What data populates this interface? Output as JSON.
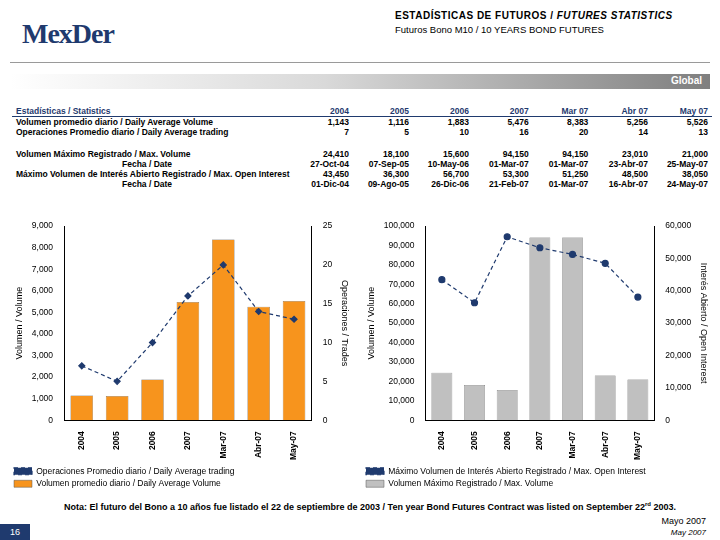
{
  "header": {
    "logo": "MexDer",
    "title": "ESTADÍSTICAS DE FUTUROS / ",
    "title_en": "FUTURES STATISTICS",
    "subtitle": "Futuros Bono M10 / 10 YEARS BOND FUTURES",
    "band": "Global"
  },
  "table": {
    "columns": [
      "Estadísticas / Statistics",
      "2004",
      "2005",
      "2006",
      "2007",
      "Mar 07",
      "Abr 07",
      "May 07"
    ],
    "rows": [
      [
        "Volumen promedio diario / Daily Average Volume",
        "1,143",
        "1,116",
        "1,883",
        "5,476",
        "8,383",
        "5,256",
        "5,526"
      ],
      [
        "Operaciones Promedio diario / Daily Average trading",
        "7",
        "5",
        "10",
        "16",
        "20",
        "14",
        "13"
      ],
      [
        "Volumen Máximo Registrado / Max. Volume",
        "24,410",
        "18,100",
        "15,600",
        "94,150",
        "94,150",
        "23,010",
        "21,000"
      ],
      [
        "Fecha / Date",
        "27-Oct-04",
        "07-Sep-05",
        "10-May-06",
        "01-Mar-07",
        "01-Mar-07",
        "23-Abr-07",
        "25-May-07"
      ],
      [
        "Máximo Volumen de Interés Abierto Registrado / Max. Open Interest",
        "43,450",
        "36,300",
        "56,700",
        "53,300",
        "51,250",
        "48,500",
        "38,050"
      ],
      [
        "Fecha / Date",
        "01-Dic-04",
        "09-Ago-05",
        "26-Dic-06",
        "21-Feb-07",
        "01-Mar-07",
        "16-Abr-07",
        "24-May-07"
      ]
    ]
  },
  "chart_data": [
    {
      "type": "bar",
      "categories": [
        "2004",
        "2005",
        "2006",
        "2007",
        "Mar-07",
        "Abr-07",
        "May-07"
      ],
      "series": [
        {
          "name": "Volumen promedio diario / Daily Average Volume",
          "type": "bar",
          "color": "#F7941D",
          "values": [
            1143,
            1116,
            1883,
            5476,
            8383,
            5256,
            5526
          ]
        },
        {
          "name": "Operaciones Promedio diario / Daily Average trading",
          "type": "line",
          "color": "#1F3A6E",
          "marker": "diamond",
          "line_style": "dashed",
          "axis": "y2",
          "values": [
            7,
            5,
            10,
            16,
            20,
            14,
            13
          ]
        }
      ],
      "y_label": "Volumen / Volume",
      "y2_label": "Operaciones / Trades",
      "ylim": [
        0,
        9000
      ],
      "yticks": [
        0,
        {
          "value": 1000,
          "label": "1,000"
        },
        {
          "value": 2000,
          "label": "2,000"
        },
        {
          "value": 3000,
          "label": "3,000"
        },
        {
          "value": 4000,
          "label": "4,000"
        },
        {
          "value": 5000,
          "label": "5,000"
        },
        {
          "value": 6000,
          "label": "6,000"
        },
        {
          "value": 7000,
          "label": "7,000"
        },
        {
          "value": 8000,
          "label": "8,000"
        },
        {
          "value": 9000,
          "label": "9,000"
        }
      ],
      "y2lim": [
        0,
        25
      ],
      "y2ticks": [
        0,
        5,
        10,
        15,
        20,
        25
      ],
      "grid": false,
      "legend": "bottom"
    },
    {
      "type": "bar",
      "categories": [
        "2004",
        "2005",
        "2006",
        "2007",
        "Mar-07",
        "Abr-07",
        "May-07"
      ],
      "series": [
        {
          "name": "Volumen Máximo Registrado / Max. Volume",
          "type": "bar",
          "color": "#C0C0C0",
          "values": [
            24410,
            18100,
            15600,
            94150,
            94150,
            23010,
            21000
          ]
        },
        {
          "name": "Máximo Volumen de Interés Abierto Registrado / Max. Open Interest",
          "type": "line",
          "color": "#1F3A6E",
          "marker": "circle",
          "line_style": "dashed",
          "axis": "y2",
          "values": [
            43450,
            36300,
            56700,
            53300,
            51250,
            48500,
            38050
          ]
        }
      ],
      "y_label": "Volumen / Volume",
      "y2_label": "Interés Abierto / Open Interest",
      "ylim": [
        0,
        100000
      ],
      "yticks": [
        0,
        {
          "value": 10000,
          "label": "10,000"
        },
        {
          "value": 20000,
          "label": "20,000"
        },
        {
          "value": 30000,
          "label": "30,000"
        },
        {
          "value": 40000,
          "label": "40,000"
        },
        {
          "value": 50000,
          "label": "50,000"
        },
        {
          "value": 60000,
          "label": "60,000"
        },
        {
          "value": 70000,
          "label": "70,000"
        },
        {
          "value": 80000,
          "label": "80,000"
        },
        {
          "value": 90000,
          "label": "90,000"
        },
        {
          "value": 100000,
          "label": "100,000"
        }
      ],
      "y2lim": [
        0,
        60000
      ],
      "y2ticks": [
        0,
        {
          "value": 10000,
          "label": "10,000"
        },
        {
          "value": 20000,
          "label": "20,000"
        },
        {
          "value": 30000,
          "label": "30,000"
        },
        {
          "value": 40000,
          "label": "40,000"
        },
        {
          "value": 50000,
          "label": "50,000"
        },
        {
          "value": 60000,
          "label": "60,000"
        }
      ],
      "grid": false,
      "legend": "bottom"
    }
  ],
  "note": {
    "text": "Nota: El futuro del Bono a 10 años fue listado el 22 de septiembre de 2003 / Ten year Bond Futures Contract was listed on September 22",
    "sup": "rd",
    "end": " 2003."
  },
  "footer": {
    "page": "16",
    "date_es": "Mayo 2007",
    "date_en": "May 2007"
  }
}
